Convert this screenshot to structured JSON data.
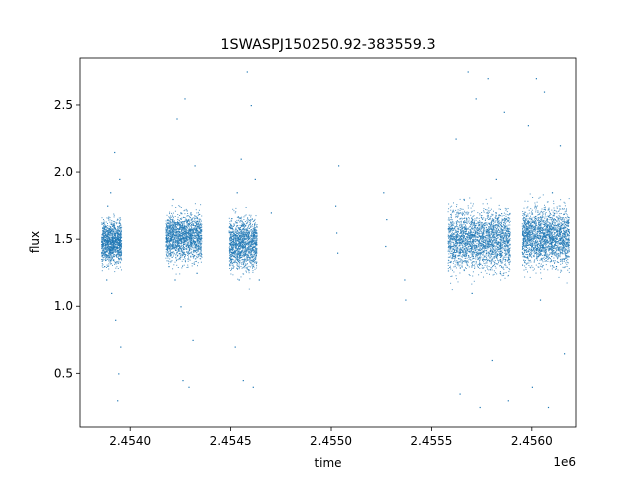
{
  "chart_data": {
    "type": "scatter",
    "title": "1SWASPJ150250.92-383559.3",
    "xlabel": "time",
    "ylabel": "flux",
    "x_offset_label": "1e6",
    "x_scale": 1000000,
    "xlim": [
      2453750,
      2456220
    ],
    "ylim": [
      0.1,
      2.85
    ],
    "x_ticks": [
      2454000,
      2454500,
      2455000,
      2455500,
      2456000
    ],
    "x_tick_labels": [
      "2.4540",
      "2.4545",
      "2.4550",
      "2.4555",
      "2.4560"
    ],
    "y_ticks": [
      0.5,
      1.0,
      1.5,
      2.0,
      2.5
    ],
    "y_tick_labels": [
      "0.5",
      "1.0",
      "1.5",
      "2.0",
      "2.5"
    ],
    "grid": false,
    "marker_color": "#1f77b4",
    "series": [
      {
        "points": [
          [
            2453860,
            1.45
          ],
          [
            2453865,
            1.62
          ],
          [
            2453870,
            1.3
          ],
          [
            2453875,
            1.55
          ],
          [
            2453880,
            1.2
          ],
          [
            2453885,
            1.75
          ],
          [
            2453890,
            1.4
          ],
          [
            2453895,
            1.5
          ],
          [
            2453900,
            1.85
          ],
          [
            2453905,
            1.1
          ],
          [
            2453910,
            1.6
          ],
          [
            2453915,
            1.35
          ],
          [
            2453920,
            2.15
          ],
          [
            2453925,
            0.9
          ],
          [
            2453930,
            1.48
          ],
          [
            2453935,
            0.3
          ],
          [
            2453940,
            0.5
          ],
          [
            2453945,
            1.95
          ],
          [
            2453950,
            0.7
          ],
          [
            2454180,
            1.5
          ],
          [
            2454190,
            1.3
          ],
          [
            2454200,
            1.65
          ],
          [
            2454210,
            1.8
          ],
          [
            2454220,
            1.2
          ],
          [
            2454230,
            2.4
          ],
          [
            2454240,
            1.45
          ],
          [
            2454250,
            1.0
          ],
          [
            2454260,
            0.45
          ],
          [
            2454270,
            2.55
          ],
          [
            2454280,
            1.55
          ],
          [
            2454290,
            0.4
          ],
          [
            2454300,
            1.7
          ],
          [
            2454310,
            0.75
          ],
          [
            2454320,
            2.05
          ],
          [
            2454330,
            1.25
          ],
          [
            2454340,
            1.6
          ],
          [
            2454350,
            1.4
          ],
          [
            2454500,
            1.35
          ],
          [
            2454510,
            1.6
          ],
          [
            2454520,
            0.7
          ],
          [
            2454530,
            1.85
          ],
          [
            2454540,
            1.2
          ],
          [
            2454550,
            2.1
          ],
          [
            2454560,
            0.45
          ],
          [
            2454570,
            1.45
          ],
          [
            2454580,
            2.75
          ],
          [
            2454590,
            1.55
          ],
          [
            2454600,
            2.5
          ],
          [
            2454610,
            0.4
          ],
          [
            2454620,
            1.95
          ],
          [
            2454640,
            1.2
          ],
          [
            2454700,
            1.7
          ],
          [
            2455020,
            1.75
          ],
          [
            2455025,
            1.55
          ],
          [
            2455030,
            1.4
          ],
          [
            2455035,
            2.05
          ],
          [
            2455260,
            1.85
          ],
          [
            2455270,
            1.45
          ],
          [
            2455275,
            1.65
          ],
          [
            2455365,
            1.2
          ],
          [
            2455370,
            1.05
          ],
          [
            2455600,
            1.5
          ],
          [
            2455620,
            2.25
          ],
          [
            2455640,
            0.35
          ],
          [
            2455660,
            1.8
          ],
          [
            2455680,
            2.75
          ],
          [
            2455700,
            1.1
          ],
          [
            2455720,
            2.55
          ],
          [
            2455740,
            0.25
          ],
          [
            2455760,
            1.45
          ],
          [
            2455780,
            2.7
          ],
          [
            2455800,
            0.6
          ],
          [
            2455820,
            1.95
          ],
          [
            2455840,
            1.25
          ],
          [
            2455860,
            2.45
          ],
          [
            2455880,
            0.3
          ],
          [
            2455960,
            1.55
          ],
          [
            2455980,
            2.35
          ],
          [
            2456000,
            0.4
          ],
          [
            2456020,
            2.7
          ],
          [
            2456040,
            1.05
          ],
          [
            2456060,
            2.6
          ],
          [
            2456080,
            0.25
          ],
          [
            2456100,
            1.85
          ],
          [
            2456120,
            1.3
          ],
          [
            2456140,
            2.2
          ],
          [
            2456160,
            0.65
          ],
          [
            2456180,
            1.5
          ]
        ]
      }
    ]
  }
}
